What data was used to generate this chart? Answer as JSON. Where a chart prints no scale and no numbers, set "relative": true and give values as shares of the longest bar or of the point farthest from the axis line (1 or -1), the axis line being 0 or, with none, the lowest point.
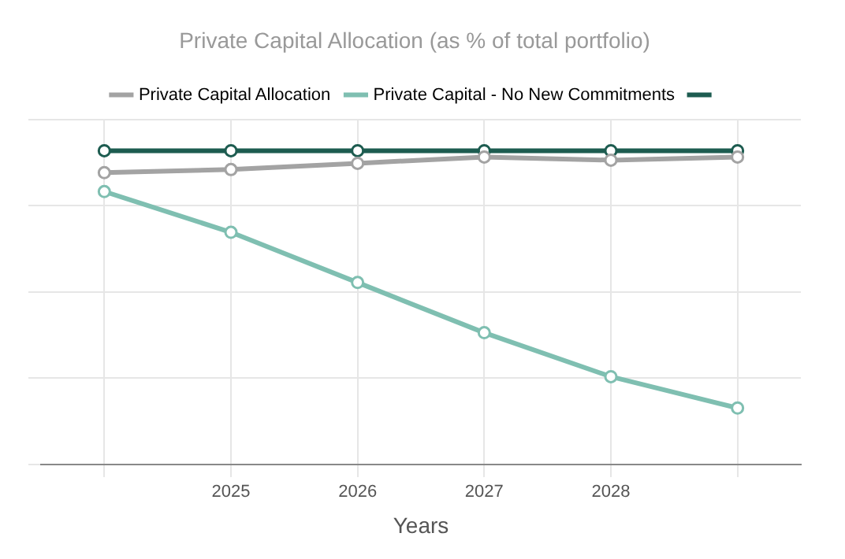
{
  "chart_data": {
    "type": "line",
    "title": "Private Capital Allocation (as % of total portfolio)",
    "xlabel": "Years",
    "categories": [
      null,
      "2025",
      "2026",
      "2027",
      "2028",
      null
    ],
    "relative": true,
    "grid": true,
    "legend": "top",
    "marker": "circle",
    "line_style": "solid",
    "series": [
      {
        "name": "Private Capital Allocation",
        "color": "#a3a3a3",
        "values": [
          0.93,
          0.94,
          0.96,
          0.98,
          0.97,
          0.98
        ]
      },
      {
        "name": "Private Capital - No New Commitments",
        "color": "#7fbfb1",
        "values": [
          0.87,
          0.74,
          0.58,
          0.42,
          0.28,
          0.18
        ]
      },
      {
        "color": "#1d5c50",
        "values": [
          1,
          1,
          1,
          1,
          1,
          1
        ]
      }
    ]
  }
}
